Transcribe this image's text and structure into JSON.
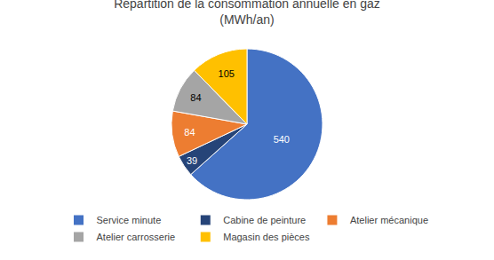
{
  "chart_data": {
    "type": "pie",
    "title": "Répartition de la consommation annuelle en gaz\n(MWh/an)",
    "categories": [
      "Service minute",
      "Cabine de peinture",
      "Atelier mécanique",
      "Atelier carrosserie",
      "Magasin des pièces"
    ],
    "values": [
      540,
      39,
      84,
      84,
      105
    ],
    "colors": [
      "#4472C4",
      "#264478",
      "#ED7D31",
      "#A5A5A5",
      "#FFC000"
    ],
    "data_labels": true,
    "legend": "bottom"
  }
}
